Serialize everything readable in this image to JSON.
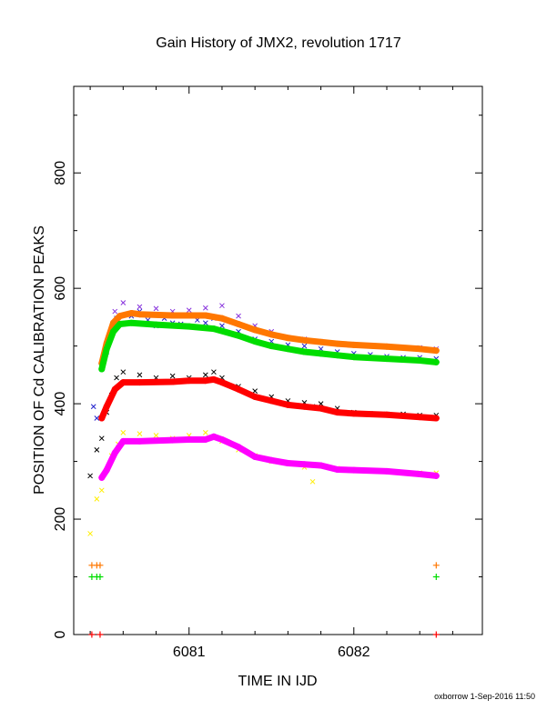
{
  "chart_data": {
    "type": "scatter",
    "title": "Gain History of JMX2, revolution 1717",
    "xlabel": "TIME IN IJD",
    "ylabel": "POSITION OF Cd CALIBRATION PEAKS",
    "xlim": [
      6080.3,
      6082.78
    ],
    "ylim": [
      0,
      950
    ],
    "x_ticks": [
      6081,
      6082
    ],
    "x_tick_labels": [
      "6081",
      "6082"
    ],
    "y_ticks": [
      0,
      200,
      400,
      600,
      800
    ],
    "y_tick_labels": [
      "0",
      "200",
      "400",
      "600",
      "800"
    ],
    "grid": false,
    "legend": "none",
    "credit": "oxborrow  1-Sep-2016 11:50",
    "series": [
      {
        "color": "#2222cc",
        "marker": "x",
        "points": [
          [
            6080.42,
            395
          ],
          [
            6080.44,
            375
          ],
          [
            6080.47,
            460
          ],
          [
            6080.5,
            490
          ],
          [
            6080.53,
            520
          ],
          [
            6080.56,
            548
          ],
          [
            6080.6,
            538
          ],
          [
            6080.65,
            552
          ],
          [
            6080.7,
            560
          ],
          [
            6080.75,
            545
          ],
          [
            6080.8,
            535
          ],
          [
            6080.85,
            548
          ],
          [
            6080.9,
            540
          ],
          [
            6080.95,
            538
          ],
          [
            6081.0,
            552
          ],
          [
            6081.05,
            545
          ],
          [
            6081.1,
            540
          ],
          [
            6081.15,
            548
          ],
          [
            6081.2,
            535
          ],
          [
            6081.3,
            525
          ],
          [
            6081.4,
            512
          ],
          [
            6081.5,
            508
          ],
          [
            6081.6,
            502
          ],
          [
            6081.7,
            500
          ],
          [
            6081.8,
            495
          ],
          [
            6081.9,
            490
          ],
          [
            6082.0,
            487
          ],
          [
            6082.1,
            485
          ],
          [
            6082.2,
            482
          ],
          [
            6082.3,
            480
          ],
          [
            6082.4,
            480
          ],
          [
            6082.5,
            478
          ]
        ]
      },
      {
        "color": "#8833dd",
        "marker": "x",
        "points": [
          [
            6080.5,
            505
          ],
          [
            6080.55,
            560
          ],
          [
            6080.6,
            575
          ],
          [
            6080.7,
            568
          ],
          [
            6080.8,
            565
          ],
          [
            6080.9,
            560
          ],
          [
            6081.0,
            562
          ],
          [
            6081.1,
            566
          ],
          [
            6081.2,
            570
          ],
          [
            6081.3,
            552
          ],
          [
            6081.4,
            535
          ],
          [
            6081.5,
            525
          ],
          [
            6081.6,
            515
          ],
          [
            6081.7,
            512
          ],
          [
            6081.8,
            508
          ],
          [
            6081.9,
            505
          ],
          [
            6082.0,
            502
          ],
          [
            6082.2,
            500
          ],
          [
            6082.4,
            497
          ],
          [
            6082.5,
            495
          ]
        ]
      },
      {
        "color": "#ff7700",
        "marker": "line",
        "points": [
          [
            6080.47,
            470
          ],
          [
            6080.5,
            505
          ],
          [
            6080.54,
            540
          ],
          [
            6080.58,
            552
          ],
          [
            6080.65,
            557
          ],
          [
            6080.7,
            555
          ],
          [
            6080.9,
            553
          ],
          [
            6081.1,
            553
          ],
          [
            6081.2,
            548
          ],
          [
            6081.3,
            538
          ],
          [
            6081.4,
            528
          ],
          [
            6081.5,
            520
          ],
          [
            6081.6,
            514
          ],
          [
            6081.7,
            510
          ],
          [
            6081.8,
            507
          ],
          [
            6081.9,
            504
          ],
          [
            6082.0,
            502
          ],
          [
            6082.2,
            499
          ],
          [
            6082.4,
            495
          ],
          [
            6082.5,
            492
          ]
        ]
      },
      {
        "color": "#00dd00",
        "marker": "line",
        "points": [
          [
            6080.47,
            460
          ],
          [
            6080.5,
            495
          ],
          [
            6080.54,
            525
          ],
          [
            6080.58,
            538
          ],
          [
            6080.65,
            540
          ],
          [
            6080.8,
            537
          ],
          [
            6081.0,
            534
          ],
          [
            6081.15,
            530
          ],
          [
            6081.3,
            518
          ],
          [
            6081.4,
            508
          ],
          [
            6081.5,
            500
          ],
          [
            6081.6,
            495
          ],
          [
            6081.7,
            490
          ],
          [
            6081.8,
            487
          ],
          [
            6081.9,
            484
          ],
          [
            6082.0,
            481
          ],
          [
            6082.2,
            478
          ],
          [
            6082.4,
            475
          ],
          [
            6082.5,
            472
          ]
        ]
      },
      {
        "color": "#000000",
        "marker": "x",
        "points": [
          [
            6080.4,
            275
          ],
          [
            6080.44,
            320
          ],
          [
            6080.47,
            340
          ],
          [
            6080.5,
            385
          ],
          [
            6080.53,
            415
          ],
          [
            6080.56,
            445
          ],
          [
            6080.6,
            455
          ],
          [
            6080.7,
            450
          ],
          [
            6080.8,
            445
          ],
          [
            6080.9,
            448
          ],
          [
            6081.0,
            445
          ],
          [
            6081.1,
            450
          ],
          [
            6081.15,
            455
          ],
          [
            6081.2,
            445
          ],
          [
            6081.3,
            430
          ],
          [
            6081.4,
            422
          ],
          [
            6081.5,
            412
          ],
          [
            6081.6,
            405
          ],
          [
            6081.7,
            402
          ],
          [
            6081.75,
            395
          ],
          [
            6081.8,
            400
          ],
          [
            6081.9,
            392
          ],
          [
            6082.0,
            385
          ],
          [
            6082.1,
            383
          ],
          [
            6082.2,
            382
          ],
          [
            6082.3,
            382
          ],
          [
            6082.4,
            380
          ],
          [
            6082.5,
            380
          ]
        ]
      },
      {
        "color": "#ff0000",
        "marker": "line",
        "points": [
          [
            6080.47,
            375
          ],
          [
            6080.5,
            395
          ],
          [
            6080.55,
            425
          ],
          [
            6080.6,
            437
          ],
          [
            6080.7,
            437
          ],
          [
            6080.9,
            438
          ],
          [
            6081.0,
            440
          ],
          [
            6081.1,
            440
          ],
          [
            6081.15,
            442
          ],
          [
            6081.2,
            437
          ],
          [
            6081.3,
            425
          ],
          [
            6081.4,
            412
          ],
          [
            6081.5,
            405
          ],
          [
            6081.6,
            398
          ],
          [
            6081.7,
            395
          ],
          [
            6081.8,
            392
          ],
          [
            6081.9,
            385
          ],
          [
            6082.0,
            383
          ],
          [
            6082.2,
            381
          ],
          [
            6082.4,
            377
          ],
          [
            6082.5,
            375
          ]
        ]
      },
      {
        "color": "#ffee00",
        "marker": "x",
        "points": [
          [
            6080.4,
            175
          ],
          [
            6080.44,
            235
          ],
          [
            6080.47,
            250
          ],
          [
            6080.5,
            285
          ],
          [
            6080.53,
            310
          ],
          [
            6080.57,
            330
          ],
          [
            6080.6,
            350
          ],
          [
            6080.7,
            348
          ],
          [
            6080.8,
            345
          ],
          [
            6080.9,
            340
          ],
          [
            6081.0,
            345
          ],
          [
            6081.1,
            350
          ],
          [
            6081.2,
            335
          ],
          [
            6081.3,
            320
          ],
          [
            6081.4,
            310
          ],
          [
            6081.5,
            300
          ],
          [
            6081.6,
            298
          ],
          [
            6081.7,
            290
          ],
          [
            6081.75,
            265
          ],
          [
            6081.8,
            292
          ],
          [
            6081.9,
            288
          ],
          [
            6082.0,
            286
          ],
          [
            6082.2,
            284
          ],
          [
            6082.4,
            280
          ],
          [
            6082.5,
            280
          ]
        ]
      },
      {
        "color": "#ff00ff",
        "marker": "line",
        "points": [
          [
            6080.47,
            272
          ],
          [
            6080.5,
            285
          ],
          [
            6080.55,
            315
          ],
          [
            6080.6,
            335
          ],
          [
            6080.7,
            335
          ],
          [
            6080.9,
            337
          ],
          [
            6081.0,
            338
          ],
          [
            6081.1,
            338
          ],
          [
            6081.15,
            343
          ],
          [
            6081.2,
            338
          ],
          [
            6081.3,
            325
          ],
          [
            6081.4,
            308
          ],
          [
            6081.5,
            302
          ],
          [
            6081.6,
            297
          ],
          [
            6081.7,
            295
          ],
          [
            6081.8,
            293
          ],
          [
            6081.9,
            286
          ],
          [
            6082.0,
            285
          ],
          [
            6082.2,
            283
          ],
          [
            6082.4,
            278
          ],
          [
            6082.5,
            275
          ]
        ]
      },
      {
        "color": "#ff7700",
        "marker": "plus",
        "points": [
          [
            6080.41,
            120
          ],
          [
            6080.44,
            120
          ],
          [
            6080.46,
            120
          ],
          [
            6082.5,
            120
          ]
        ]
      },
      {
        "color": "#00dd00",
        "marker": "plus",
        "points": [
          [
            6080.41,
            100
          ],
          [
            6080.44,
            100
          ],
          [
            6080.46,
            100
          ],
          [
            6082.5,
            100
          ]
        ]
      },
      {
        "color": "#ff0000",
        "marker": "plus",
        "points": [
          [
            6080.41,
            0
          ],
          [
            6080.46,
            0
          ],
          [
            6082.5,
            0
          ]
        ]
      }
    ]
  }
}
